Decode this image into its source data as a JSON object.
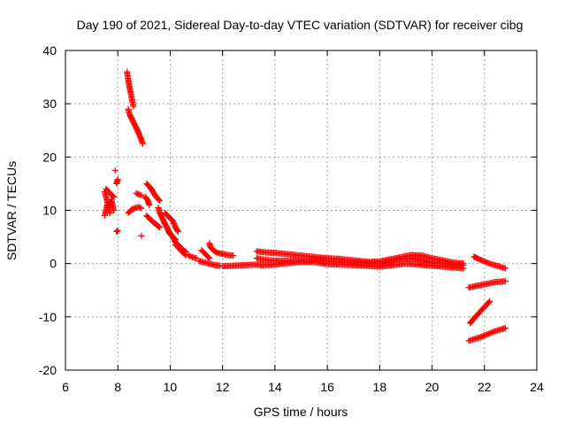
{
  "chart_data": {
    "type": "scatter",
    "title": "Day 190 of 2021, Sidereal Day-to-day VTEC variation (SDTVAR) for receiver cibg",
    "xlabel": "GPS time / hours",
    "ylabel": "SDTVAR / TECUs",
    "xlim": [
      6,
      24
    ],
    "ylim": [
      -20,
      40
    ],
    "xticks": [
      6,
      8,
      10,
      12,
      14,
      16,
      18,
      20,
      22,
      24
    ],
    "yticks": [
      -20,
      -10,
      0,
      10,
      20,
      30,
      40
    ],
    "xtick_labels": [
      "6",
      "8",
      "10",
      "12",
      "14",
      "16",
      "18",
      "20",
      "22",
      "24"
    ],
    "ytick_labels": [
      "-20",
      "-10",
      "0",
      "10",
      "20",
      "30",
      "40"
    ],
    "grid": true,
    "marker": "plus",
    "color": "#ff0000",
    "series": [
      {
        "name": "SDTVAR",
        "segments": [
          [
            [
              7.5,
              13.5
            ],
            [
              7.55,
              12.5
            ],
            [
              7.6,
              11.5
            ],
            [
              7.65,
              10.5
            ],
            [
              7.7,
              11.0
            ],
            [
              7.75,
              12.0
            ],
            [
              7.8,
              11.0
            ],
            [
              7.85,
              10.0
            ]
          ],
          [
            [
              7.5,
              9.0
            ],
            [
              7.55,
              10.0
            ],
            [
              7.6,
              11.0
            ],
            [
              7.7,
              9.5
            ]
          ],
          [
            [
              7.55,
              14.0
            ],
            [
              7.65,
              13.5
            ],
            [
              7.75,
              13.0
            ],
            [
              7.85,
              12.5
            ]
          ],
          [
            [
              7.95,
              6.0
            ],
            [
              8.0,
              6.2
            ]
          ],
          [
            [
              7.9,
              17.5
            ]
          ],
          [
            [
              7.95,
              15.0
            ],
            [
              8.0,
              15.8
            ]
          ],
          [
            [
              8.35,
              36.0
            ],
            [
              8.4,
              34.5
            ],
            [
              8.45,
              33.0
            ],
            [
              8.5,
              31.8
            ],
            [
              8.55,
              30.5
            ],
            [
              8.6,
              29.5
            ]
          ],
          [
            [
              8.4,
              29.0
            ],
            [
              8.45,
              28.0
            ],
            [
              8.5,
              27.5
            ],
            [
              8.6,
              26.5
            ],
            [
              8.7,
              25.5
            ],
            [
              8.8,
              24.5
            ],
            [
              8.9,
              23.2
            ],
            [
              8.95,
              22.5
            ]
          ],
          [
            [
              8.4,
              9.5
            ],
            [
              8.5,
              10.0
            ],
            [
              8.6,
              10.3
            ],
            [
              8.7,
              10.5
            ],
            [
              8.8,
              10.6
            ],
            [
              8.9,
              10.4
            ]
          ],
          [
            [
              8.7,
              13.2
            ],
            [
              8.8,
              13.0
            ],
            [
              8.9,
              12.8
            ]
          ],
          [
            [
              8.9,
              5.2
            ]
          ],
          [
            [
              9.1,
              15.0
            ],
            [
              9.2,
              14.5
            ],
            [
              9.3,
              13.8
            ],
            [
              9.4,
              13.0
            ],
            [
              9.5,
              12.3
            ],
            [
              9.6,
              11.8
            ]
          ],
          [
            [
              9.05,
              12.5
            ],
            [
              9.15,
              11.8
            ],
            [
              9.2,
              11.0
            ]
          ],
          [
            [
              9.1,
              9.0
            ],
            [
              9.2,
              8.5
            ],
            [
              9.3,
              8.0
            ],
            [
              9.4,
              7.6
            ],
            [
              9.5,
              7.2
            ],
            [
              9.6,
              6.8
            ]
          ],
          [
            [
              9.55,
              10.5
            ],
            [
              9.6,
              9.5
            ],
            [
              9.7,
              8.5
            ],
            [
              9.8,
              7.5
            ],
            [
              9.9,
              6.5
            ],
            [
              10.0,
              5.5
            ],
            [
              10.1,
              5.0
            ],
            [
              10.2,
              4.5
            ]
          ],
          [
            [
              9.8,
              9.5
            ],
            [
              9.9,
              9.0
            ],
            [
              10.0,
              8.5
            ],
            [
              10.1,
              8.0
            ],
            [
              10.2,
              6.8
            ],
            [
              10.3,
              6.0
            ]
          ],
          [
            [
              9.95,
              6.0
            ],
            [
              10.1,
              5.0
            ],
            [
              10.2,
              4.0
            ],
            [
              10.3,
              3.5
            ],
            [
              10.4,
              3.0
            ],
            [
              10.5,
              2.5
            ],
            [
              10.6,
              2.2
            ]
          ],
          [
            [
              10.2,
              3.5
            ],
            [
              10.3,
              3.2
            ],
            [
              10.4,
              2.5
            ],
            [
              10.5,
              2.0
            ],
            [
              10.6,
              1.6
            ]
          ],
          [
            [
              10.7,
              1.5
            ],
            [
              10.85,
              1.2
            ],
            [
              11.0,
              1.0
            ]
          ],
          [
            [
              11.2,
              2.5
            ],
            [
              11.3,
              2.0
            ],
            [
              11.4,
              1.5
            ],
            [
              11.5,
              1.0
            ]
          ],
          [
            [
              11.5,
              3.8
            ],
            [
              11.55,
              3.0
            ],
            [
              11.65,
              2.5
            ],
            [
              11.8,
              2.0
            ],
            [
              12.0,
              1.8
            ],
            [
              12.2,
              1.6
            ],
            [
              12.4,
              1.5
            ]
          ],
          [
            [
              11.1,
              0.5
            ],
            [
              11.3,
              0.2
            ],
            [
              11.5,
              0.0
            ],
            [
              11.7,
              -0.3
            ],
            [
              11.9,
              -0.4
            ]
          ],
          [
            [
              12.0,
              -0.5
            ],
            [
              12.4,
              -0.4
            ],
            [
              12.8,
              -0.3
            ],
            [
              13.2,
              -0.2
            ],
            [
              13.6,
              -0.3
            ],
            [
              14.0,
              -0.2
            ],
            [
              14.5,
              0.1
            ],
            [
              15.0,
              0.3
            ],
            [
              15.5,
              0.3
            ],
            [
              16.0,
              -0.1
            ],
            [
              16.5,
              -0.2
            ],
            [
              17.0,
              -0.3
            ],
            [
              17.5,
              -0.4
            ],
            [
              18.0,
              -0.6
            ],
            [
              18.5,
              -0.3
            ],
            [
              19.0,
              0.0
            ],
            [
              19.5,
              -0.2
            ],
            [
              20.0,
              -0.4
            ],
            [
              20.5,
              -0.6
            ],
            [
              21.0,
              -0.8
            ],
            [
              21.2,
              -0.9
            ]
          ],
          [
            [
              13.3,
              1.0
            ],
            [
              13.5,
              0.8
            ],
            [
              13.8,
              0.6
            ],
            [
              14.2,
              0.5
            ],
            [
              14.6,
              0.5
            ],
            [
              15.0,
              0.6
            ],
            [
              15.5,
              0.7
            ],
            [
              16.0,
              0.5
            ],
            [
              16.5,
              0.3
            ],
            [
              17.0,
              0.2
            ],
            [
              17.5,
              0.1
            ],
            [
              18.0,
              0.0
            ],
            [
              18.3,
              0.3
            ],
            [
              18.6,
              0.6
            ],
            [
              19.0,
              0.9
            ],
            [
              19.3,
              0.9
            ],
            [
              19.6,
              0.6
            ],
            [
              20.0,
              0.2
            ],
            [
              20.4,
              0.1
            ],
            [
              20.8,
              -0.2
            ],
            [
              21.2,
              -0.3
            ]
          ],
          [
            [
              13.3,
              2.3
            ],
            [
              13.6,
              2.1
            ],
            [
              14.0,
              2.0
            ],
            [
              14.4,
              1.8
            ],
            [
              14.8,
              1.6
            ],
            [
              15.2,
              1.4
            ],
            [
              15.6,
              1.2
            ],
            [
              16.0,
              1.0
            ],
            [
              16.4,
              0.9
            ],
            [
              16.8,
              0.7
            ],
            [
              17.2,
              0.5
            ],
            [
              17.6,
              0.3
            ],
            [
              18.0,
              0.4
            ],
            [
              18.4,
              0.8
            ],
            [
              18.8,
              1.2
            ],
            [
              19.2,
              1.6
            ],
            [
              19.6,
              1.5
            ],
            [
              20.0,
              1.0
            ],
            [
              20.4,
              0.6
            ],
            [
              20.8,
              0.2
            ],
            [
              21.2,
              0.0
            ]
          ],
          [
            [
              21.6,
              1.3
            ],
            [
              21.8,
              0.8
            ],
            [
              22.0,
              0.4
            ],
            [
              22.2,
              0.0
            ],
            [
              22.4,
              -0.3
            ],
            [
              22.6,
              -0.6
            ],
            [
              22.8,
              -0.9
            ]
          ],
          [
            [
              21.4,
              -4.5
            ],
            [
              21.6,
              -4.3
            ],
            [
              21.8,
              -4.1
            ],
            [
              22.0,
              -3.9
            ],
            [
              22.2,
              -3.7
            ],
            [
              22.4,
              -3.5
            ],
            [
              22.6,
              -3.4
            ],
            [
              22.8,
              -3.3
            ]
          ],
          [
            [
              21.45,
              -11.2
            ],
            [
              21.6,
              -10.3
            ],
            [
              21.75,
              -9.5
            ],
            [
              21.9,
              -8.7
            ],
            [
              22.05,
              -7.9
            ],
            [
              22.2,
              -7.1
            ]
          ],
          [
            [
              21.4,
              -14.5
            ],
            [
              21.6,
              -14.2
            ],
            [
              21.8,
              -13.9
            ],
            [
              22.0,
              -13.5
            ],
            [
              22.2,
              -13.1
            ],
            [
              22.4,
              -12.7
            ],
            [
              22.6,
              -12.4
            ],
            [
              22.8,
              -12.1
            ]
          ]
        ]
      }
    ]
  }
}
